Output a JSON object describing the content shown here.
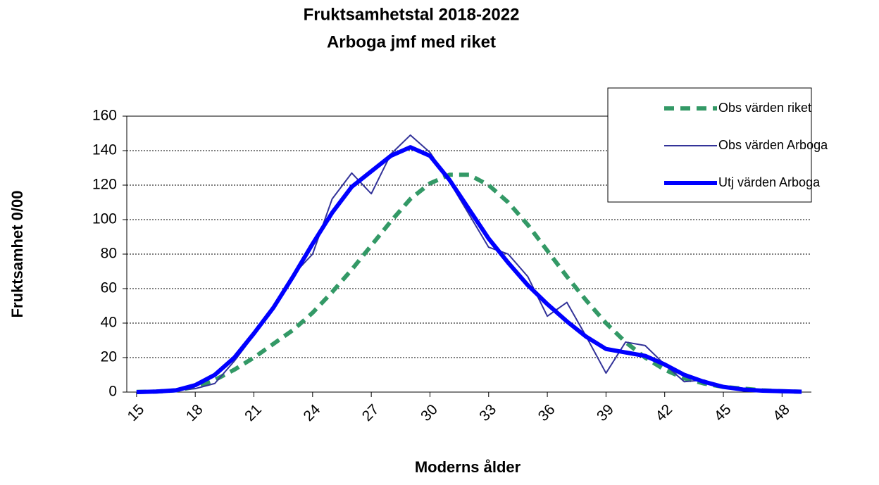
{
  "chart_data": {
    "type": "line",
    "title": "Fruktsamhetstal 2018-2022",
    "subtitle": "Arboga jmf med riket",
    "x_label": "Moderns ålder",
    "y_label": "Fruktsamhet 0/00",
    "x": [
      15,
      16,
      17,
      18,
      19,
      20,
      21,
      22,
      23,
      24,
      25,
      26,
      27,
      28,
      29,
      30,
      31,
      32,
      33,
      34,
      35,
      36,
      37,
      38,
      39,
      40,
      41,
      42,
      43,
      44,
      45,
      46,
      47,
      48,
      49
    ],
    "series": [
      {
        "name": "Obs värden riket",
        "color": "#339966",
        "style": "dashed",
        "width": 6,
        "values": [
          0.1,
          0.3,
          1,
          3,
          7,
          13,
          20,
          28,
          36,
          46,
          58,
          71,
          85,
          99,
          112,
          121,
          126,
          126,
          120,
          110,
          97,
          82,
          67,
          53,
          40,
          29,
          20,
          13,
          8,
          5,
          3,
          2,
          1,
          0.5,
          0.2
        ]
      },
      {
        "name": "Obs värden Arboga",
        "color": "#333399",
        "style": "solid",
        "width": 2,
        "values": [
          0,
          0,
          1,
          2,
          5,
          18,
          33,
          50,
          68,
          80,
          112,
          127,
          115,
          138,
          149,
          139,
          122,
          103,
          84,
          80,
          67,
          44,
          52,
          32,
          11,
          29,
          27,
          16,
          6,
          7,
          3,
          1,
          1,
          1,
          0
        ]
      },
      {
        "name": "Utj värden Arboga",
        "color": "#0000ff",
        "style": "solid",
        "width": 6,
        "values": [
          0,
          0.3,
          1,
          4,
          10,
          20,
          34,
          49,
          67,
          86,
          104,
          119,
          128,
          137,
          142,
          137,
          123,
          106,
          89,
          75,
          62,
          51,
          41,
          32,
          25,
          23,
          21,
          16,
          10,
          6,
          3,
          1.5,
          0.8,
          0.5,
          0.2
        ]
      }
    ],
    "xlim": [
      14.5,
      49.5
    ],
    "xticks": [
      15,
      18,
      21,
      24,
      27,
      30,
      33,
      36,
      39,
      42,
      45,
      48
    ],
    "ylim": [
      0,
      160
    ],
    "yticks": [
      0,
      20,
      40,
      60,
      80,
      100,
      120,
      140,
      160
    ],
    "grid": true,
    "legend": "top-right"
  }
}
